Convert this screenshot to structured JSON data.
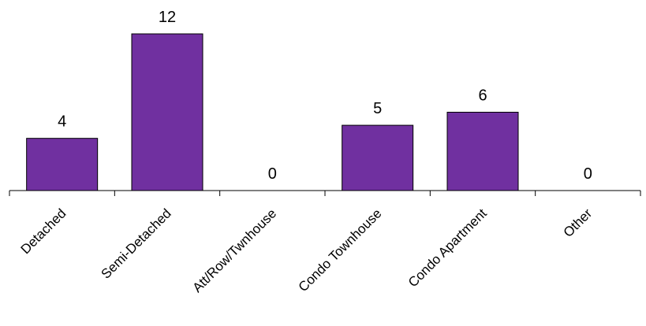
{
  "chart_data": {
    "type": "bar",
    "categories": [
      "Detached",
      "Semi-Detached",
      "Att/Row/Twnhouse",
      "Condo Townhouse",
      "Condo Apartment",
      "Other"
    ],
    "values": [
      4,
      12,
      0,
      5,
      6,
      0
    ],
    "data_labels": [
      "4",
      "12",
      "0",
      "5",
      "6",
      "0"
    ],
    "ylim": [
      0,
      12
    ],
    "grid": false,
    "bar_color": "#7030a0",
    "axis_color": "#000000"
  }
}
